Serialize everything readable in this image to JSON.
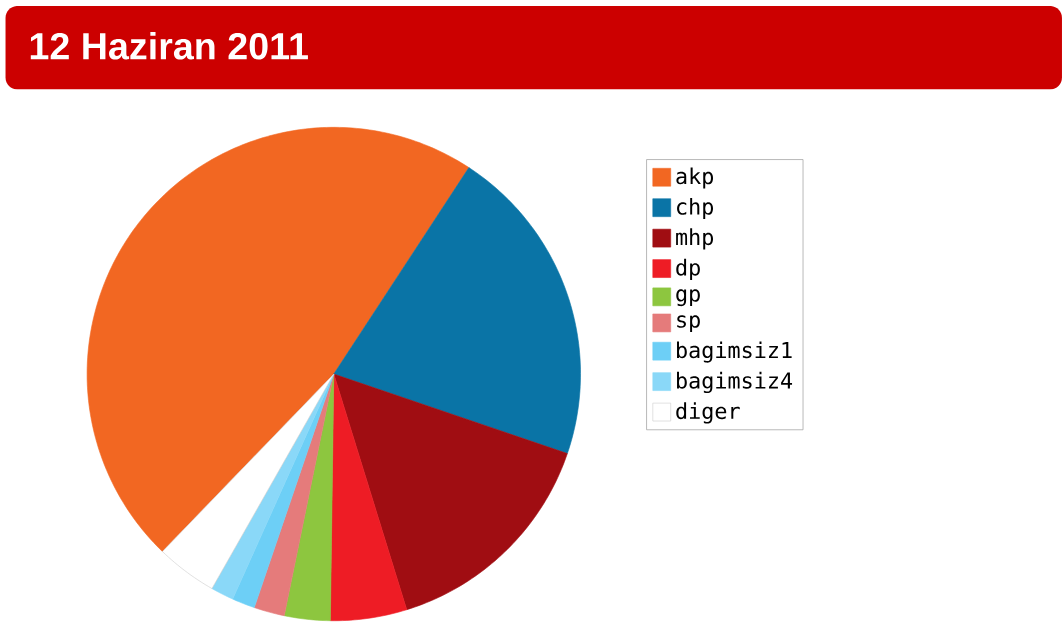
{
  "chart_data": {
    "type": "pie",
    "title": "12 Haziran 2011",
    "categories": [
      "akp",
      "chp",
      "mhp",
      "dp",
      "gp",
      "sp",
      "bagimsiz1",
      "bagimsiz4",
      "diger"
    ],
    "values": [
      47,
      21,
      15,
      5,
      3,
      2,
      1.5,
      1.5,
      4
    ],
    "colors": [
      "#f26722",
      "#0a74a6",
      "#a00d12",
      "#ee1c25",
      "#8dc63f",
      "#e57b7b",
      "#6dcff6",
      "#8ad8f8",
      "#ffffff"
    ],
    "legend": "right"
  }
}
